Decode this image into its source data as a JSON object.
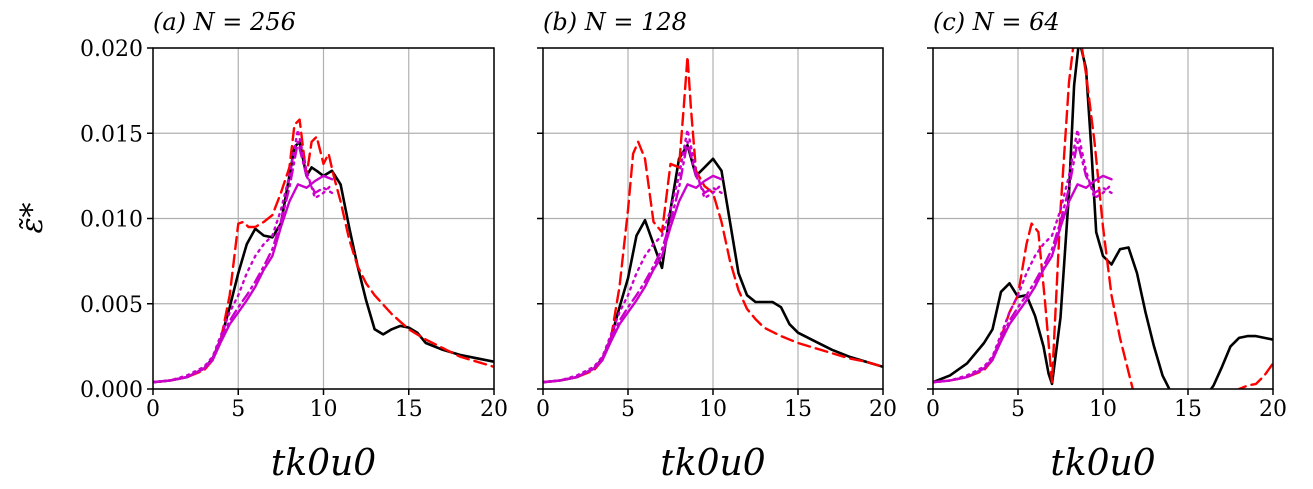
{
  "figure": {
    "y_label": "ε̃*"
  },
  "chart_data": [
    {
      "type": "line",
      "title": "(a) N = 256",
      "xlabel": "tk0u0",
      "xlim": [
        0,
        20
      ],
      "ylim": [
        0,
        0.02
      ],
      "xticks": [
        "0",
        "5",
        "10",
        "15",
        "20"
      ],
      "yticks": [
        "0.000",
        "0.005",
        "0.010",
        "0.015",
        "0.020"
      ],
      "grid": true,
      "series": [
        {
          "style": "solid",
          "color": "#000000",
          "x": [
            0,
            1,
            2,
            3,
            3.5,
            4,
            4.5,
            5,
            5.5,
            6,
            6.5,
            7,
            7.5,
            8,
            8.3,
            8.6,
            9,
            9.3,
            9.6,
            10,
            10.5,
            11,
            11.5,
            12,
            12.5,
            13,
            13.5,
            14,
            14.5,
            15,
            15.5,
            16,
            17,
            18,
            19,
            20
          ],
          "y": [
            0.0004,
            0.0005,
            0.0007,
            0.0012,
            0.0018,
            0.003,
            0.0048,
            0.0068,
            0.0085,
            0.0094,
            0.009,
            0.0089,
            0.0097,
            0.0125,
            0.0142,
            0.0145,
            0.0125,
            0.013,
            0.0128,
            0.0125,
            0.0128,
            0.012,
            0.0095,
            0.0072,
            0.0052,
            0.0035,
            0.0032,
            0.0035,
            0.0037,
            0.0036,
            0.0033,
            0.0027,
            0.0023,
            0.002,
            0.0018,
            0.0016
          ]
        },
        {
          "style": "dashed",
          "color": "#ff0000",
          "x": [
            0,
            1,
            2,
            3,
            3.5,
            4,
            4.5,
            5,
            5.3,
            5.6,
            6,
            6.5,
            7,
            7.5,
            8,
            8.3,
            8.6,
            9,
            9.3,
            9.6,
            10,
            10.3,
            10.6,
            11,
            11.5,
            12,
            12.5,
            13,
            14,
            15,
            16,
            17,
            18,
            19,
            20
          ],
          "y": [
            0.0004,
            0.0005,
            0.0007,
            0.0011,
            0.0017,
            0.003,
            0.0055,
            0.0097,
            0.0098,
            0.0095,
            0.0095,
            0.0098,
            0.0102,
            0.0115,
            0.013,
            0.0155,
            0.0158,
            0.0125,
            0.0145,
            0.0148,
            0.0132,
            0.0138,
            0.0125,
            0.011,
            0.0088,
            0.0072,
            0.0062,
            0.0055,
            0.0044,
            0.0035,
            0.0029,
            0.0024,
            0.0019,
            0.0016,
            0.0013
          ]
        },
        {
          "style": "solid",
          "color": "#cc00cc",
          "x": [
            0,
            1,
            2,
            3,
            3.5,
            4,
            4.5,
            5,
            5.5,
            6,
            6.5,
            7,
            7.5,
            8,
            8.5,
            9,
            9.5,
            10,
            10.5
          ],
          "y": [
            0.0004,
            0.0005,
            0.0007,
            0.0012,
            0.0017,
            0.0028,
            0.0038,
            0.0045,
            0.0052,
            0.006,
            0.007,
            0.0078,
            0.0095,
            0.011,
            0.012,
            0.0118,
            0.0122,
            0.0125,
            0.0123
          ]
        },
        {
          "style": "dashdot",
          "color": "#cc00cc",
          "x": [
            0,
            1,
            2,
            3,
            3.5,
            4,
            4.5,
            5,
            5.5,
            6,
            6.5,
            7,
            7.5,
            8,
            8.5,
            9,
            9.5,
            10,
            10.5
          ],
          "y": [
            0.0004,
            0.0005,
            0.0007,
            0.0012,
            0.0018,
            0.003,
            0.004,
            0.0048,
            0.0055,
            0.0063,
            0.0072,
            0.0082,
            0.0098,
            0.0118,
            0.0145,
            0.0125,
            0.0115,
            0.0118,
            0.0115
          ]
        },
        {
          "style": "dotted",
          "color": "#cc00cc",
          "x": [
            0,
            1,
            2,
            3,
            3.5,
            4,
            4.5,
            5,
            5.5,
            6,
            6.5,
            7,
            7.5,
            8,
            8.5,
            9,
            9.5,
            10,
            10.5
          ],
          "y": [
            0.0004,
            0.0005,
            0.0008,
            0.0013,
            0.0019,
            0.0032,
            0.0045,
            0.0055,
            0.0068,
            0.0078,
            0.0085,
            0.009,
            0.0105,
            0.0125,
            0.0152,
            0.0128,
            0.0112,
            0.0115,
            0.012
          ]
        }
      ]
    },
    {
      "type": "line",
      "title": "(b) N = 128",
      "xlabel": "tk0u0",
      "xlim": [
        0,
        20
      ],
      "ylim": [
        0,
        0.02
      ],
      "xticks": [
        "0",
        "5",
        "10",
        "15",
        "20"
      ],
      "yticks": [],
      "grid": true,
      "series": [
        {
          "style": "solid",
          "color": "#000000",
          "x": [
            0,
            1,
            2,
            3,
            3.5,
            4,
            4.5,
            5,
            5.5,
            6,
            6.5,
            7,
            7.5,
            8,
            8.5,
            9,
            9.5,
            10,
            10.5,
            11,
            11.5,
            12,
            12.5,
            13,
            13.5,
            14,
            14.5,
            15,
            16,
            17,
            18,
            19,
            20
          ],
          "y": [
            0.0004,
            0.0005,
            0.0007,
            0.0012,
            0.0018,
            0.003,
            0.0048,
            0.0065,
            0.009,
            0.0099,
            0.0085,
            0.0071,
            0.0105,
            0.0135,
            0.0143,
            0.0125,
            0.013,
            0.0135,
            0.0128,
            0.0098,
            0.0068,
            0.0055,
            0.0051,
            0.0051,
            0.0051,
            0.0048,
            0.0038,
            0.0033,
            0.0028,
            0.0023,
            0.0019,
            0.0016,
            0.0013
          ]
        },
        {
          "style": "dashed",
          "color": "#ff0000",
          "x": [
            0,
            1,
            2,
            3,
            3.5,
            4,
            4.5,
            5,
            5.3,
            5.6,
            6,
            6.5,
            7,
            7.5,
            8,
            8.3,
            8.5,
            8.7,
            9,
            9.5,
            10,
            10.5,
            11,
            11.5,
            12,
            12.5,
            13,
            14,
            15,
            16,
            17,
            18,
            19,
            20
          ],
          "y": [
            0.0004,
            0.0005,
            0.0007,
            0.0011,
            0.0017,
            0.003,
            0.006,
            0.0105,
            0.0138,
            0.0145,
            0.0135,
            0.0098,
            0.0092,
            0.0132,
            0.013,
            0.0168,
            0.0195,
            0.0165,
            0.0128,
            0.0119,
            0.0115,
            0.0098,
            0.0075,
            0.0058,
            0.0047,
            0.0041,
            0.0036,
            0.0031,
            0.0027,
            0.0024,
            0.0021,
            0.0018,
            0.0016,
            0.0013
          ]
        },
        {
          "style": "solid",
          "color": "#cc00cc",
          "x": [
            0,
            1,
            2,
            3,
            3.5,
            4,
            4.5,
            5,
            5.5,
            6,
            6.5,
            7,
            7.5,
            8,
            8.5,
            9,
            9.5,
            10,
            10.5
          ],
          "y": [
            0.0004,
            0.0005,
            0.0007,
            0.0012,
            0.0017,
            0.0028,
            0.0038,
            0.0045,
            0.0052,
            0.006,
            0.007,
            0.0078,
            0.0095,
            0.011,
            0.012,
            0.0118,
            0.0122,
            0.0125,
            0.0123
          ]
        },
        {
          "style": "dashdot",
          "color": "#cc00cc",
          "x": [
            0,
            1,
            2,
            3,
            3.5,
            4,
            4.5,
            5,
            5.5,
            6,
            6.5,
            7,
            7.5,
            8,
            8.5,
            9,
            9.5,
            10,
            10.5
          ],
          "y": [
            0.0004,
            0.0005,
            0.0007,
            0.0012,
            0.0018,
            0.003,
            0.004,
            0.0048,
            0.0055,
            0.0063,
            0.0072,
            0.0082,
            0.0098,
            0.0118,
            0.0145,
            0.0125,
            0.0115,
            0.0118,
            0.0115
          ]
        },
        {
          "style": "dotted",
          "color": "#cc00cc",
          "x": [
            0,
            1,
            2,
            3,
            3.5,
            4,
            4.5,
            5,
            5.5,
            6,
            6.5,
            7,
            7.5,
            8,
            8.5,
            9,
            9.5,
            10,
            10.5
          ],
          "y": [
            0.0004,
            0.0005,
            0.0008,
            0.0013,
            0.0019,
            0.0032,
            0.0045,
            0.0055,
            0.0068,
            0.0078,
            0.0085,
            0.009,
            0.0105,
            0.0125,
            0.0152,
            0.0128,
            0.0112,
            0.0115,
            0.012
          ]
        }
      ]
    },
    {
      "type": "line",
      "title": "(c) N = 64",
      "xlabel": "tk0u0",
      "xlim": [
        0,
        20
      ],
      "ylim": [
        0,
        0.02
      ],
      "xticks": [
        "0",
        "5",
        "10",
        "15",
        "20"
      ],
      "yticks": [],
      "grid": true,
      "series": [
        {
          "style": "solid",
          "color": "#000000",
          "x": [
            0,
            1,
            2,
            3,
            3.5,
            4,
            4.5,
            5,
            5.5,
            6,
            6.5,
            6.8,
            7,
            7.5,
            8,
            8.3,
            8.6,
            9,
            9.3,
            9.6,
            10,
            10.5,
            11,
            11.5,
            12,
            12.5,
            13,
            13.5,
            14,
            14.3,
            16,
            16.5,
            17,
            17.5,
            18,
            18.5,
            19,
            19.5,
            20
          ],
          "y": [
            0.0004,
            0.0008,
            0.0015,
            0.0027,
            0.0035,
            0.0057,
            0.0062,
            0.0054,
            0.0055,
            0.0043,
            0.0025,
            0.0009,
            0.0003,
            0.0042,
            0.0115,
            0.0178,
            0.0205,
            0.0188,
            0.0143,
            0.0092,
            0.0078,
            0.0073,
            0.0082,
            0.0083,
            0.0068,
            0.0045,
            0.0025,
            0.0008,
            -0.0002,
            -0.0005,
            -0.0005,
            0.0002,
            0.0013,
            0.0025,
            0.003,
            0.0031,
            0.0031,
            0.003,
            0.0029
          ]
        },
        {
          "style": "dashed",
          "color": "#ff0000",
          "x": [
            0,
            1,
            2,
            3,
            3.5,
            4,
            4.5,
            5,
            5.5,
            5.8,
            6.2,
            6.6,
            7,
            7.5,
            8,
            8.3,
            8.6,
            9,
            9.5,
            10,
            10.5,
            11,
            11.5,
            11.8,
            12.2,
            17,
            18,
            18.5,
            19,
            19.5,
            20
          ],
          "y": [
            0.0004,
            0.0005,
            0.0007,
            0.0011,
            0.0017,
            0.003,
            0.0045,
            0.0055,
            0.0085,
            0.0097,
            0.0092,
            0.005,
            0.0004,
            0.0105,
            0.018,
            0.0205,
            0.021,
            0.0185,
            0.0145,
            0.0095,
            0.0055,
            0.003,
            0.001,
            -0.0002,
            -0.001,
            -0.001,
            0,
            0.0002,
            0.0003,
            0.0008,
            0.0015
          ]
        },
        {
          "style": "solid",
          "color": "#cc00cc",
          "x": [
            0,
            1,
            2,
            3,
            3.5,
            4,
            4.5,
            5,
            5.5,
            6,
            6.5,
            7,
            7.5,
            8,
            8.5,
            9,
            9.5,
            10,
            10.5
          ],
          "y": [
            0.0004,
            0.0005,
            0.0007,
            0.0012,
            0.0017,
            0.0028,
            0.0038,
            0.0045,
            0.0052,
            0.006,
            0.007,
            0.0078,
            0.0095,
            0.011,
            0.012,
            0.0118,
            0.0122,
            0.0125,
            0.0123
          ]
        },
        {
          "style": "dashdot",
          "color": "#cc00cc",
          "x": [
            0,
            1,
            2,
            3,
            3.5,
            4,
            4.5,
            5,
            5.5,
            6,
            6.5,
            7,
            7.5,
            8,
            8.5,
            9,
            9.5,
            10,
            10.5
          ],
          "y": [
            0.0004,
            0.0005,
            0.0007,
            0.0012,
            0.0018,
            0.003,
            0.004,
            0.0048,
            0.0055,
            0.0063,
            0.0072,
            0.0082,
            0.0098,
            0.0118,
            0.0145,
            0.0125,
            0.0115,
            0.0118,
            0.0115
          ]
        },
        {
          "style": "dotted",
          "color": "#cc00cc",
          "x": [
            0,
            1,
            2,
            3,
            3.5,
            4,
            4.5,
            5,
            5.5,
            6,
            6.5,
            7,
            7.5,
            8,
            8.5,
            9,
            9.5,
            10,
            10.5
          ],
          "y": [
            0.0004,
            0.0005,
            0.0008,
            0.0013,
            0.0019,
            0.0032,
            0.0045,
            0.0055,
            0.0068,
            0.0078,
            0.0085,
            0.009,
            0.0105,
            0.0125,
            0.0152,
            0.0128,
            0.0112,
            0.0115,
            0.012
          ]
        }
      ]
    }
  ]
}
